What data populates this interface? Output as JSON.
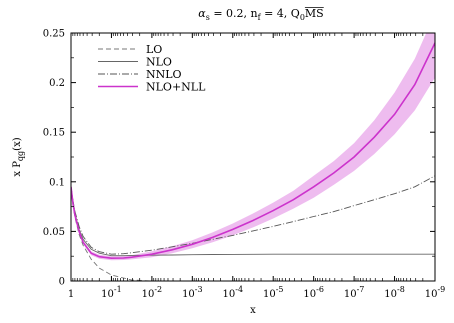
{
  "chart_data": {
    "type": "line",
    "title": "α_s = 0.2,  n_f = 4,  Q₀MS̄",
    "title_parts": {
      "alpha": "α",
      "alpha_sub": "s",
      "mid1": " = 0.2,  n",
      "nf_sub": "f",
      "mid2": " = 4,  Q",
      "q_sub": "0",
      "scheme": "MS"
    },
    "xlabel": "x",
    "ylabel": "x P",
    "ylabel_sub": "qg",
    "ylabel_tail": "(x)",
    "x_scale": "log (decreasing x to the right)",
    "xlim": [
      1,
      1e-09
    ],
    "ylim": [
      0,
      0.25
    ],
    "grid": false,
    "legend_position": "top-left",
    "x_tick_labels": [
      {
        "base": "1",
        "exp": ""
      },
      {
        "base": "10",
        "exp": "-1"
      },
      {
        "base": "10",
        "exp": "-2"
      },
      {
        "base": "10",
        "exp": "-3"
      },
      {
        "base": "10",
        "exp": "-4"
      },
      {
        "base": "10",
        "exp": "-5"
      },
      {
        "base": "10",
        "exp": "-6"
      },
      {
        "base": "10",
        "exp": "-7"
      },
      {
        "base": "10",
        "exp": "-8"
      },
      {
        "base": "10",
        "exp": "-9"
      }
    ],
    "y_ticks": [
      0,
      0.05,
      0.1,
      0.15,
      0.2,
      0.25
    ],
    "y_tick_labels": [
      "0",
      "0.05",
      "0.1",
      "0.15",
      "0.2",
      "0.25"
    ],
    "log10_x": [
      0,
      -0.05,
      -0.1,
      -0.2,
      -0.3,
      -0.5,
      -0.7,
      -1,
      -1.3,
      -1.5,
      -2,
      -2.5,
      -3,
      -3.5,
      -4,
      -4.5,
      -5,
      -5.5,
      -6,
      -6.5,
      -7,
      -7.5,
      -8,
      -8.5,
      -9
    ],
    "series": [
      {
        "name": "LO",
        "color": "#777777",
        "dash": "5,3",
        "values": [
          0.095,
          0.076,
          0.064,
          0.047,
          0.036,
          0.022,
          0.013,
          0.006,
          0.003,
          0.001,
          0,
          0,
          0,
          0,
          0,
          0,
          0,
          0,
          0,
          0,
          0,
          0,
          0,
          0,
          0
        ]
      },
      {
        "name": "NLO",
        "color": "#666666",
        "dash": "",
        "values": [
          0.095,
          0.08,
          0.068,
          0.052,
          0.042,
          0.032,
          0.028,
          0.0255,
          0.0255,
          0.0258,
          0.026,
          0.0262,
          0.0265,
          0.0267,
          0.0268,
          0.0269,
          0.027,
          0.027,
          0.027,
          0.027,
          0.027,
          0.027,
          0.027,
          0.027,
          0.027
        ]
      },
      {
        "name": "NNLO",
        "color": "#555555",
        "dash": "7,2,1,2",
        "values": [
          0.095,
          0.081,
          0.07,
          0.055,
          0.045,
          0.034,
          0.0295,
          0.027,
          0.0275,
          0.0285,
          0.031,
          0.0345,
          0.038,
          0.042,
          0.046,
          0.0505,
          0.055,
          0.06,
          0.065,
          0.07,
          0.076,
          0.082,
          0.088,
          0.095,
          0.106
        ]
      },
      {
        "name": "NLO+NLL",
        "color": "#cc33cc",
        "dash": "",
        "values": [
          0.095,
          0.078,
          0.066,
          0.05,
          0.039,
          0.028,
          0.0245,
          0.023,
          0.0232,
          0.024,
          0.027,
          0.0315,
          0.037,
          0.044,
          0.052,
          0.061,
          0.071,
          0.082,
          0.095,
          0.109,
          0.125,
          0.145,
          0.168,
          0.198,
          0.24
        ],
        "band_lower": [
          0.093,
          0.076,
          0.064,
          0.048,
          0.037,
          0.026,
          0.0225,
          0.021,
          0.0212,
          0.0218,
          0.024,
          0.028,
          0.033,
          0.039,
          0.046,
          0.054,
          0.063,
          0.073,
          0.084,
          0.097,
          0.111,
          0.128,
          0.148,
          0.172,
          0.205
        ],
        "band_upper": [
          0.097,
          0.08,
          0.068,
          0.052,
          0.041,
          0.03,
          0.0265,
          0.025,
          0.0252,
          0.026,
          0.03,
          0.035,
          0.041,
          0.049,
          0.058,
          0.068,
          0.079,
          0.091,
          0.106,
          0.121,
          0.139,
          0.162,
          0.19,
          0.224,
          0.27
        ]
      }
    ],
    "band_color": "#e8a6ea"
  }
}
